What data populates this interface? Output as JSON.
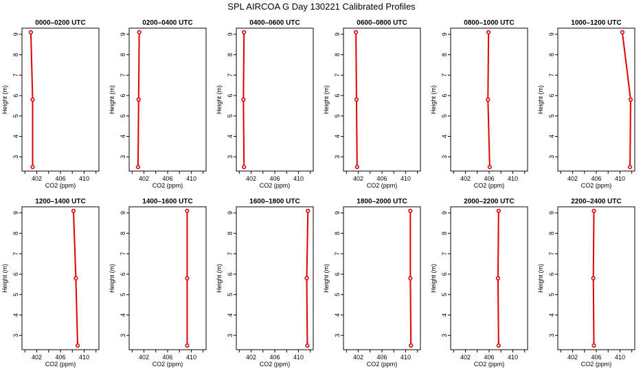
{
  "title": "SPL AIRCOA G  Day 130221  Calibrated Profiles",
  "colors": {
    "series": "#dd0000",
    "axis": "#000000"
  },
  "chart_data": [
    {
      "type": "line",
      "title": "0000–0200 UTC",
      "xlabel": "CO2 (ppm)",
      "ylabel": "Height (m)",
      "xlim": [
        399.5,
        412.5
      ],
      "ylim": [
        2.3,
        9.3
      ],
      "xticks": [
        "402",
        "406",
        "410"
      ],
      "xtick_values": [
        402,
        406,
        410
      ],
      "yticks": [
        "3",
        "4",
        "5",
        "6",
        "7",
        "8",
        "9"
      ],
      "ytick_values": [
        3,
        4,
        5,
        6,
        7,
        8,
        9
      ],
      "series": [
        {
          "x": [
            401.0,
            401.3,
            401.3
          ],
          "y": [
            9.1,
            5.8,
            2.5
          ]
        }
      ],
      "grid": false
    },
    {
      "type": "line",
      "title": "0200–0400 UTC",
      "xlabel": "CO2 (ppm)",
      "ylabel": "Height (m)",
      "xlim": [
        399.5,
        412.5
      ],
      "ylim": [
        2.3,
        9.3
      ],
      "xticks": [
        "402",
        "406",
        "410"
      ],
      "xtick_values": [
        402,
        406,
        410
      ],
      "yticks": [
        "3",
        "4",
        "5",
        "6",
        "7",
        "8",
        "9"
      ],
      "ytick_values": [
        3,
        4,
        5,
        6,
        7,
        8,
        9
      ],
      "series": [
        {
          "x": [
            401.2,
            401.1,
            401.0
          ],
          "y": [
            9.1,
            5.8,
            2.5
          ]
        }
      ],
      "grid": false
    },
    {
      "type": "line",
      "title": "0400–0600 UTC",
      "xlabel": "CO2 (ppm)",
      "ylabel": "Height (m)",
      "xlim": [
        399.5,
        412.5
      ],
      "ylim": [
        2.3,
        9.3
      ],
      "xticks": [
        "402",
        "406",
        "410"
      ],
      "xtick_values": [
        402,
        406,
        410
      ],
      "yticks": [
        "3",
        "4",
        "5",
        "6",
        "7",
        "8",
        "9"
      ],
      "ytick_values": [
        3,
        4,
        5,
        6,
        7,
        8,
        9
      ],
      "series": [
        {
          "x": [
            400.8,
            400.7,
            400.8
          ],
          "y": [
            9.1,
            5.8,
            2.5
          ]
        }
      ],
      "grid": false
    },
    {
      "type": "line",
      "title": "0600–0800 UTC",
      "xlabel": "CO2 (ppm)",
      "ylabel": "Height (m)",
      "xlim": [
        399.5,
        412.5
      ],
      "ylim": [
        2.3,
        9.3
      ],
      "xticks": [
        "402",
        "406",
        "410"
      ],
      "xtick_values": [
        402,
        406,
        410
      ],
      "yticks": [
        "3",
        "4",
        "5",
        "6",
        "7",
        "8",
        "9"
      ],
      "ytick_values": [
        3,
        4,
        5,
        6,
        7,
        8,
        9
      ],
      "series": [
        {
          "x": [
            401.6,
            401.7,
            401.8
          ],
          "y": [
            9.1,
            5.8,
            2.5
          ]
        }
      ],
      "grid": false
    },
    {
      "type": "line",
      "title": "0800–1000 UTC",
      "xlabel": "CO2 (ppm)",
      "ylabel": "Height (m)",
      "xlim": [
        399.5,
        412.5
      ],
      "ylim": [
        2.3,
        9.3
      ],
      "xticks": [
        "402",
        "406",
        "410"
      ],
      "xtick_values": [
        402,
        406,
        410
      ],
      "yticks": [
        "3",
        "4",
        "5",
        "6",
        "7",
        "8",
        "9"
      ],
      "ytick_values": [
        3,
        4,
        5,
        6,
        7,
        8,
        9
      ],
      "series": [
        {
          "x": [
            405.9,
            405.8,
            406.1
          ],
          "y": [
            9.1,
            5.8,
            2.5
          ]
        }
      ],
      "grid": false
    },
    {
      "type": "line",
      "title": "1000–1200 UTC",
      "xlabel": "CO2 (ppm)",
      "ylabel": "Height (m)",
      "xlim": [
        399.5,
        412.5
      ],
      "ylim": [
        2.3,
        9.3
      ],
      "xticks": [
        "402",
        "406",
        "410"
      ],
      "xtick_values": [
        402,
        406,
        410
      ],
      "yticks": [
        "3",
        "4",
        "5",
        "6",
        "7",
        "8",
        "9"
      ],
      "ytick_values": [
        3,
        4,
        5,
        6,
        7,
        8,
        9
      ],
      "series": [
        {
          "x": [
            410.4,
            411.8,
            411.7
          ],
          "y": [
            9.1,
            5.8,
            2.5
          ]
        }
      ],
      "grid": false
    },
    {
      "type": "line",
      "title": "1200–1400 UTC",
      "xlabel": "CO2 (ppm)",
      "ylabel": "Height (m)",
      "xlim": [
        399.5,
        412.5
      ],
      "ylim": [
        2.3,
        9.3
      ],
      "xticks": [
        "402",
        "406",
        "410"
      ],
      "xtick_values": [
        402,
        406,
        410
      ],
      "yticks": [
        "3",
        "4",
        "5",
        "6",
        "7",
        "8",
        "9"
      ],
      "ytick_values": [
        3,
        4,
        5,
        6,
        7,
        8,
        9
      ],
      "series": [
        {
          "x": [
            408.2,
            408.6,
            408.9
          ],
          "y": [
            9.1,
            5.8,
            2.5
          ]
        }
      ],
      "grid": false
    },
    {
      "type": "line",
      "title": "1400–1600 UTC",
      "xlabel": "CO2 (ppm)",
      "ylabel": "Height (m)",
      "xlim": [
        399.5,
        412.5
      ],
      "ylim": [
        2.3,
        9.3
      ],
      "xticks": [
        "402",
        "406",
        "410"
      ],
      "xtick_values": [
        402,
        406,
        410
      ],
      "yticks": [
        "3",
        "4",
        "5",
        "6",
        "7",
        "8",
        "9"
      ],
      "ytick_values": [
        3,
        4,
        5,
        6,
        7,
        8,
        9
      ],
      "series": [
        {
          "x": [
            409.3,
            409.3,
            409.3
          ],
          "y": [
            9.1,
            5.8,
            2.5
          ]
        }
      ],
      "grid": false
    },
    {
      "type": "line",
      "title": "1600–1800 UTC",
      "xlabel": "CO2 (ppm)",
      "ylabel": "Height (m)",
      "xlim": [
        399.5,
        412.5
      ],
      "ylim": [
        2.3,
        9.3
      ],
      "xticks": [
        "402",
        "406",
        "410"
      ],
      "xtick_values": [
        402,
        406,
        410
      ],
      "yticks": [
        "3",
        "4",
        "5",
        "6",
        "7",
        "8",
        "9"
      ],
      "ytick_values": [
        3,
        4,
        5,
        6,
        7,
        8,
        9
      ],
      "series": [
        {
          "x": [
            411.6,
            411.4,
            411.5
          ],
          "y": [
            9.1,
            5.8,
            2.5
          ]
        }
      ],
      "grid": false
    },
    {
      "type": "line",
      "title": "1800–2000 UTC",
      "xlabel": "CO2 (ppm)",
      "ylabel": "Height (m)",
      "xlim": [
        399.5,
        412.5
      ],
      "ylim": [
        2.3,
        9.3
      ],
      "xticks": [
        "402",
        "406",
        "410"
      ],
      "xtick_values": [
        402,
        406,
        410
      ],
      "yticks": [
        "3",
        "4",
        "5",
        "6",
        "7",
        "8",
        "9"
      ],
      "ytick_values": [
        3,
        4,
        5,
        6,
        7,
        8,
        9
      ],
      "series": [
        {
          "x": [
            410.8,
            410.8,
            410.9
          ],
          "y": [
            9.1,
            5.8,
            2.5
          ]
        }
      ],
      "grid": false
    },
    {
      "type": "line",
      "title": "2000–2200 UTC",
      "xlabel": "CO2 (ppm)",
      "ylabel": "Height (m)",
      "xlim": [
        399.5,
        412.5
      ],
      "ylim": [
        2.3,
        9.3
      ],
      "xticks": [
        "402",
        "406",
        "410"
      ],
      "xtick_values": [
        402,
        406,
        410
      ],
      "yticks": [
        "3",
        "4",
        "5",
        "6",
        "7",
        "8",
        "9"
      ],
      "ytick_values": [
        3,
        4,
        5,
        6,
        7,
        8,
        9
      ],
      "series": [
        {
          "x": [
            407.6,
            407.5,
            407.6
          ],
          "y": [
            9.1,
            5.8,
            2.5
          ]
        }
      ],
      "grid": false
    },
    {
      "type": "line",
      "title": "2200–2400 UTC",
      "xlabel": "CO2 (ppm)",
      "ylabel": "Height (m)",
      "xlim": [
        399.5,
        412.5
      ],
      "ylim": [
        2.3,
        9.3
      ],
      "xticks": [
        "402",
        "406",
        "410"
      ],
      "xtick_values": [
        402,
        406,
        410
      ],
      "yticks": [
        "3",
        "4",
        "5",
        "6",
        "7",
        "8",
        "9"
      ],
      "ytick_values": [
        3,
        4,
        5,
        6,
        7,
        8,
        9
      ],
      "series": [
        {
          "x": [
            405.6,
            405.5,
            405.6
          ],
          "y": [
            9.1,
            5.8,
            2.5
          ]
        }
      ],
      "grid": false
    }
  ]
}
